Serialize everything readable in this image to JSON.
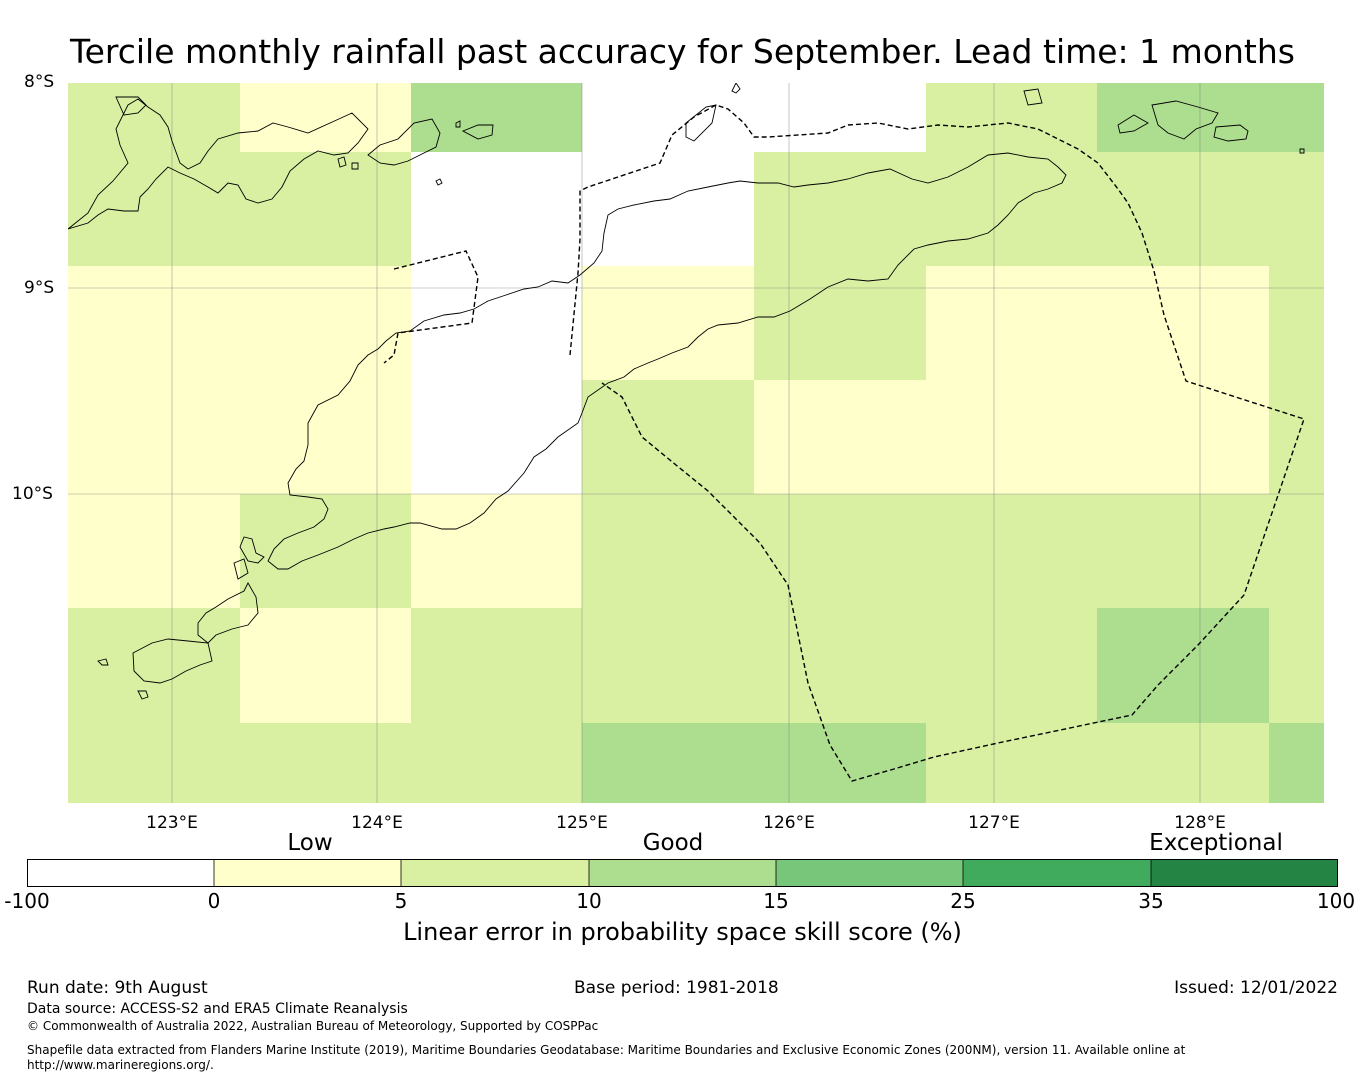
{
  "title": "Tercile monthly rainfall past accuracy for September. Lead time: 1 months",
  "map": {
    "lat_labels": [
      "8°S",
      "9°S",
      "10°S"
    ],
    "lon_labels": [
      "123°E",
      "124°E",
      "125°E",
      "126°E",
      "127°E",
      "128°E"
    ],
    "extent": {
      "lon_min": 122.5,
      "lon_max": 128.6,
      "lat_top": -8.0,
      "lat_bottom": -11.5
    },
    "colors": {
      "lt0": "#ffffff",
      "0-5": "#ffffcc",
      "5-10": "#d9f0a3",
      "10-15": "#addd8e",
      "15-25": "#78c679",
      "25-35": "#41ab5d",
      "35-100": "#238443"
    }
  },
  "colorbar": {
    "categories": [
      "Low",
      "Good",
      "Exceptional"
    ],
    "ticks": [
      "-100",
      "0",
      "5",
      "10",
      "15",
      "25",
      "35",
      "100"
    ],
    "colors": [
      "#ffffff",
      "#ffffcc",
      "#d9f0a3",
      "#addd8e",
      "#78c679",
      "#41ab5d",
      "#238443"
    ],
    "label": "Linear error in probability space skill score (%)"
  },
  "footer": {
    "run_date": "Run date: 9th August",
    "base_period": "Base period: 1981-2018",
    "issued": "Issued: 12/01/2022",
    "data_source": "Data source: ACCESS-S2 and ERA5 Climate Reanalysis",
    "copyright": "© Commonwealth of Australia 2022, Australian Bureau of Meteorology, Supported by COSPPac",
    "shapefile_1": "Shapefile data extracted from Flanders Marine Institute (2019), Maritime Boundaries Geodatabase: Maritime Boundaries and Exclusive Economic Zones (200NM), version 11. Available online at",
    "shapefile_2": "http://www.marineregions.org/."
  }
}
